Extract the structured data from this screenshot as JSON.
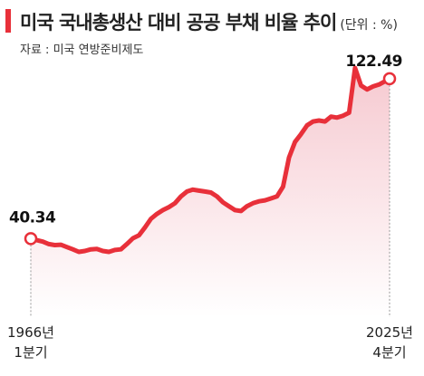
{
  "header": {
    "title": "미국 국내총생산 대비 공공 부채 비율 추이",
    "unit": "(단위 : %)",
    "source": "자료 : 미국 연방준비제도"
  },
  "colors": {
    "accent": "#e8303a",
    "fill_top": "#f6c9d0",
    "fill_bottom": "#ffffff"
  },
  "chart_data": {
    "type": "area",
    "title": "미국 국내총생산 대비 공공 부채 비율 추이",
    "unit": "%",
    "x_start_label": [
      "1966년",
      "1분기"
    ],
    "x_end_label": [
      "2025년",
      "4분기"
    ],
    "x": [
      1966,
      1967,
      1968,
      1969,
      1970,
      1971,
      1972,
      1973,
      1974,
      1975,
      1976,
      1977,
      1978,
      1979,
      1980,
      1981,
      1982,
      1983,
      1984,
      1985,
      1986,
      1987,
      1988,
      1989,
      1990,
      1991,
      1992,
      1993,
      1994,
      1995,
      1996,
      1997,
      1998,
      1999,
      2000,
      2001,
      2002,
      2003,
      2004,
      2005,
      2006,
      2007,
      2008,
      2009,
      2010,
      2011,
      2012,
      2013,
      2014,
      2015,
      2016,
      2017,
      2018,
      2019,
      2020,
      2021,
      2022,
      2023,
      2024,
      2025.75
    ],
    "values": [
      40.34,
      39.5,
      38.8,
      37.5,
      37.0,
      37.2,
      36.0,
      34.8,
      33.5,
      34.0,
      34.8,
      35.0,
      34.0,
      33.5,
      34.5,
      34.8,
      37.5,
      40.5,
      42.0,
      46.0,
      50.5,
      53.0,
      55.0,
      56.5,
      58.5,
      62.0,
      64.5,
      65.5,
      65.0,
      64.5,
      64.0,
      62.0,
      59.0,
      57.0,
      55.0,
      54.5,
      57.0,
      58.5,
      59.5,
      60.0,
      61.0,
      62.0,
      67.0,
      82.0,
      90.0,
      94.0,
      98.5,
      100.5,
      101.0,
      100.5,
      103.0,
      102.5,
      103.5,
      105.0,
      128.0,
      119.0,
      117.0,
      118.5,
      119.5,
      122.49
    ],
    "annotations": [
      {
        "x": 1966,
        "value": 40.34,
        "label": "40.34"
      },
      {
        "x": 2025.75,
        "value": 122.49,
        "label": "122.49"
      }
    ],
    "ylim": [
      0,
      135
    ],
    "grid": false,
    "legend": "none"
  }
}
